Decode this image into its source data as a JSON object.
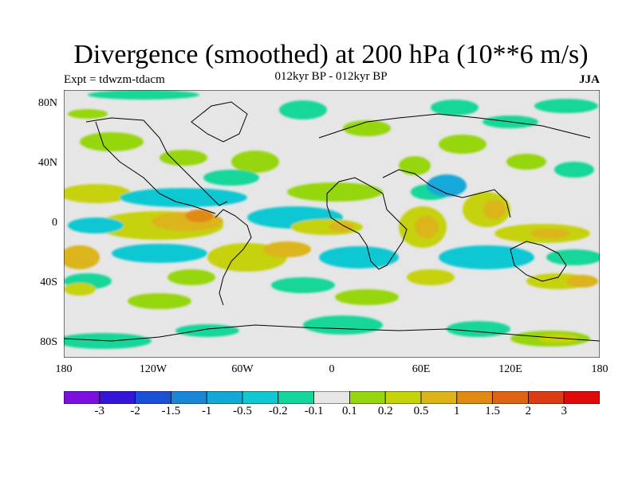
{
  "header": {
    "title": "Divergence (smoothed) at 200 hPa (10**6 m/s)",
    "subtitle": "012kyr BP - 012kyr BP",
    "experiment": "Expt = tdwzm-tdacm",
    "season": "JJA"
  },
  "map": {
    "lat_labels": [
      "80N",
      "40N",
      "0",
      "40S",
      "80S"
    ],
    "lon_labels": [
      "180",
      "120W",
      "60W",
      "0",
      "60E",
      "120E",
      "180"
    ]
  },
  "colorbar": {
    "colors": [
      "#7b10e0",
      "#3515d8",
      "#1a4fd8",
      "#1a86d8",
      "#12a8d8",
      "#10c8d2",
      "#14d69a",
      "#e6e6e6",
      "#96d610",
      "#c6d20a",
      "#dcb41a",
      "#e08a12",
      "#de6414",
      "#dc3c14",
      "#e00a0a"
    ],
    "labels": [
      "-3",
      "-2",
      "-1.5",
      "-1",
      "-0.5",
      "-0.2",
      "-0.1",
      "0.1",
      "0.2",
      "0.5",
      "1",
      "1.5",
      "2",
      "3"
    ]
  },
  "colors": {
    "background": "#ffffff",
    "neutral": "#e6e6e6"
  }
}
